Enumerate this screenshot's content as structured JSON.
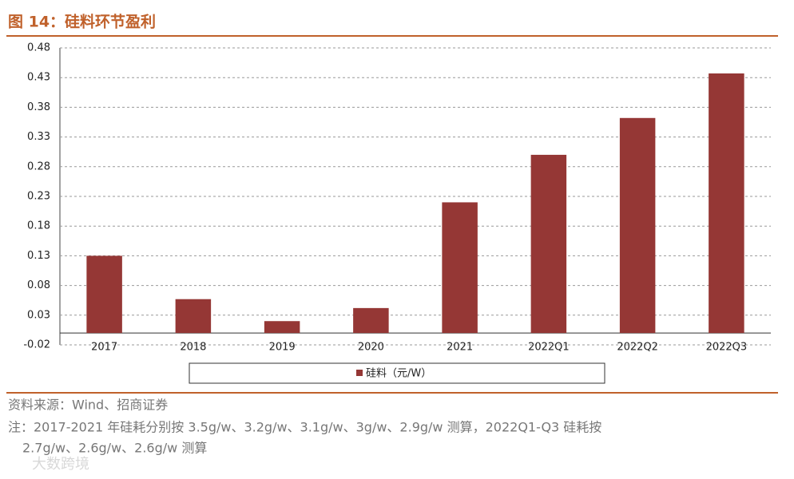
{
  "chart_data": {
    "type": "bar",
    "title": "图 14：硅料环节盈利",
    "categories": [
      "2017",
      "2018",
      "2019",
      "2020",
      "2021",
      "2022Q1",
      "2022Q2",
      "2022Q3"
    ],
    "series": [
      {
        "name": "硅料（元/W）",
        "color": "#953735",
        "values": [
          0.13,
          0.057,
          0.02,
          0.042,
          0.22,
          0.3,
          0.362,
          0.437
        ]
      }
    ],
    "ylim": [
      -0.02,
      0.48
    ],
    "yticks": [
      -0.02,
      0.03,
      0.08,
      0.13,
      0.18,
      0.23,
      0.28,
      0.33,
      0.38,
      0.43,
      0.48
    ],
    "grid": true
  },
  "source": "资料来源：Wind、招商证券",
  "note": [
    "注：2017-2021 年硅耗分别按 3.5g/w、3.2g/w、3.1g/w、3g/w、2.9g/w 测算，2022Q1-Q3 硅耗按",
    "2.7g/w、2.6g/w、2.6g/w 测算"
  ],
  "watermark": "大数跨境"
}
